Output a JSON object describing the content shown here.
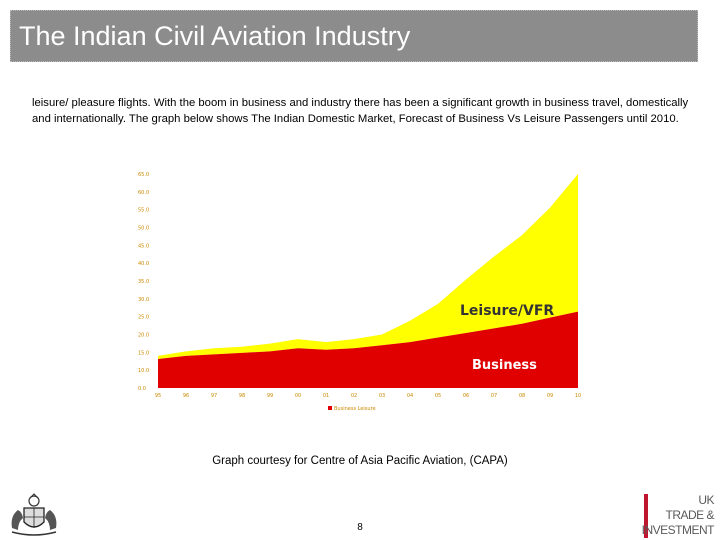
{
  "slide": {
    "title": "The Indian Civil Aviation Industry",
    "body": "leisure/ pleasure flights. With the boom in business and industry there has been a significant growth in business travel, domestically and internationally. The graph below shows The Indian Domestic Market, Forecast of Business Vs Leisure Passengers until 2010.",
    "caption": "Graph courtesy for Centre of Asia Pacific Aviation, (CAPA)",
    "page_number": "8"
  },
  "logos": {
    "right_lines": [
      "UK",
      "TRADE &",
      "INVESTMENT"
    ],
    "right_accent": "#c0152f"
  },
  "chart_data": {
    "type": "area",
    "stacked": true,
    "categories": [
      "95",
      "96",
      "97",
      "98",
      "99",
      "00",
      "01",
      "02",
      "03",
      "04",
      "05",
      "06",
      "07",
      "08",
      "09",
      "10"
    ],
    "series": [
      {
        "name": "Business",
        "color": "#e00000",
        "values": [
          9.5,
          10.5,
          11.0,
          11.5,
          12.0,
          13.0,
          12.5,
          13.0,
          14.0,
          15.0,
          16.5,
          18.0,
          19.5,
          21.0,
          23.0,
          25.0
        ]
      },
      {
        "name": "Leisure/VFR",
        "color": "#ffff00",
        "values": [
          1.0,
          1.5,
          2.0,
          2.0,
          2.5,
          3.0,
          2.5,
          3.0,
          3.5,
          7.0,
          11.0,
          17.5,
          23.5,
          29.0,
          36.0,
          45.0
        ]
      }
    ],
    "ytick_labels": [
      "0.0",
      "10.0",
      "15.0",
      "20.0",
      "25.0",
      "30.0",
      "35.0",
      "40.0",
      "45.0",
      "50.0",
      "55.0",
      "60.0",
      "65.0"
    ],
    "xtick_labels": [
      "95",
      "96",
      "97",
      "98",
      "99",
      "00",
      "01",
      "02",
      "03",
      "04",
      "05",
      "06",
      "07",
      "08",
      "09",
      "10"
    ],
    "ylim": [
      0,
      70
    ],
    "legend_text": "Business Leisure",
    "legend_placement": "bottom",
    "grid": false
  }
}
